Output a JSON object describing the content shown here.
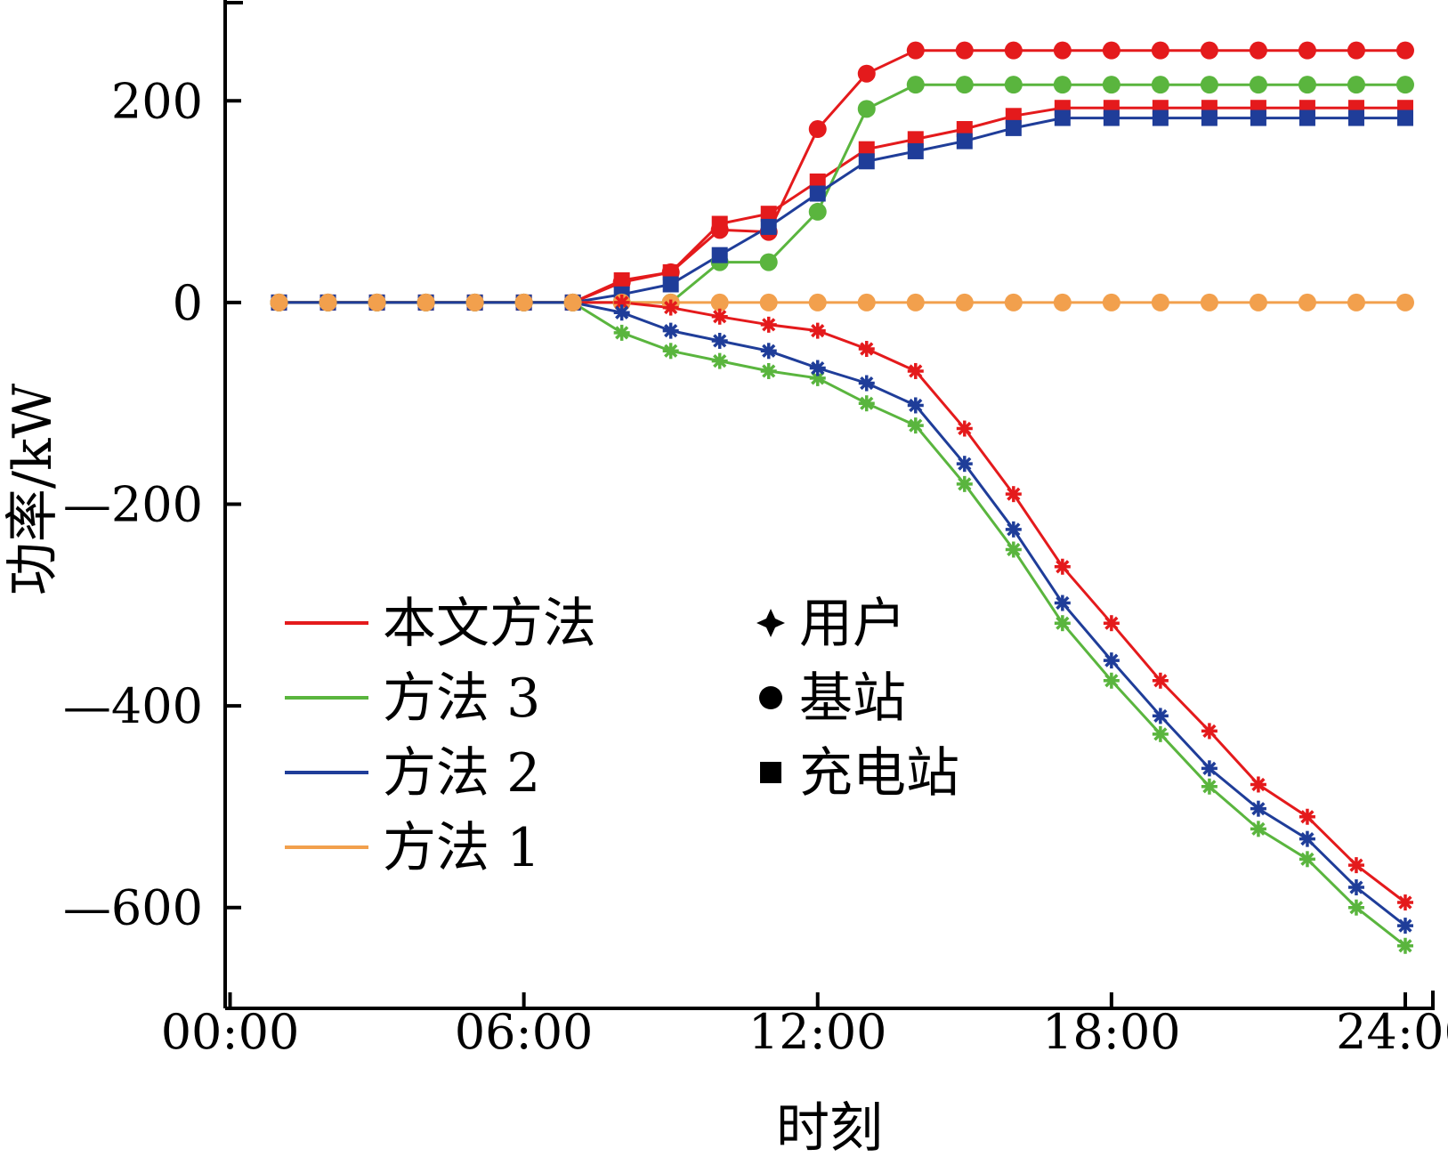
{
  "chart_data": {
    "type": "line",
    "xlabel": "时刻",
    "ylabel": "功率/kW",
    "xlim": [
      -0.1,
      24.6
    ],
    "ylim": [
      -700,
      300
    ],
    "x_ticks": [
      0,
      6,
      12,
      18,
      24
    ],
    "x_tick_labels": [
      "00:00",
      "06:00",
      "12:00",
      "18:00",
      "24:00"
    ],
    "y_ticks": [
      200,
      0,
      -200,
      -400,
      -600
    ],
    "y_tick_labels": [
      "200",
      "0",
      "—200",
      "—400",
      "—600"
    ],
    "x": [
      1,
      2,
      3,
      4,
      5,
      6,
      7,
      8,
      9,
      10,
      11,
      12,
      13,
      14,
      15,
      16,
      17,
      18,
      19,
      20,
      21,
      22,
      23,
      24
    ],
    "legend": {
      "methods": [
        {
          "label": "本文方法",
          "color": "#e41a1c"
        },
        {
          "label": "方法 3",
          "color": "#5ab53e"
        },
        {
          "label": "方法 2",
          "color": "#1f3d99"
        },
        {
          "label": "方法 1",
          "color": "#f2a04d"
        }
      ],
      "markers": [
        {
          "label": "用户",
          "marker": "star"
        },
        {
          "label": "基站",
          "marker": "circle"
        },
        {
          "label": "充电站",
          "marker": "square"
        }
      ]
    },
    "series": [
      {
        "method": "本文方法",
        "entity": "基站",
        "marker": "circle",
        "color": "#e41a1c",
        "values": [
          0,
          0,
          0,
          0,
          0,
          0,
          0,
          20,
          30,
          72,
          70,
          172,
          227,
          250,
          250,
          250,
          250,
          250,
          250,
          250,
          250,
          250,
          250,
          250
        ]
      },
      {
        "method": "本文方法",
        "entity": "充电站",
        "marker": "square",
        "color": "#e41a1c",
        "values": [
          0,
          0,
          0,
          0,
          0,
          0,
          0,
          22,
          30,
          78,
          88,
          120,
          152,
          162,
          172,
          185,
          193,
          193,
          193,
          193,
          193,
          193,
          193,
          193
        ]
      },
      {
        "method": "方法 3",
        "entity": "基站",
        "marker": "circle",
        "color": "#5ab53e",
        "values": [
          0,
          0,
          0,
          0,
          0,
          0,
          0,
          0,
          0,
          40,
          40,
          90,
          192,
          216,
          216,
          216,
          216,
          216,
          216,
          216,
          216,
          216,
          216,
          216
        ]
      },
      {
        "method": "方法 2",
        "entity": "充电站",
        "marker": "square",
        "color": "#1f3d99",
        "values": [
          0,
          0,
          0,
          0,
          0,
          0,
          0,
          8,
          18,
          47,
          75,
          108,
          140,
          150,
          160,
          173,
          183,
          183,
          183,
          183,
          183,
          183,
          183,
          183
        ]
      },
      {
        "method": "方法 1",
        "entity": "基站",
        "marker": "circle",
        "color": "#f2a04d",
        "values": [
          0,
          0,
          0,
          0,
          0,
          0,
          0,
          0,
          0,
          0,
          0,
          0,
          0,
          0,
          0,
          0,
          0,
          0,
          0,
          0,
          0,
          0,
          0,
          0
        ]
      },
      {
        "method": "本文方法",
        "entity": "用户",
        "marker": "star",
        "color": "#e41a1c",
        "values": [
          0,
          0,
          0,
          0,
          0,
          0,
          0,
          0,
          -5,
          -14,
          -22,
          -28,
          -46,
          -68,
          -125,
          -190,
          -262,
          -318,
          -375,
          -425,
          -478,
          -510,
          -558,
          -595
        ]
      },
      {
        "method": "方法 3",
        "entity": "用户",
        "marker": "star",
        "color": "#5ab53e",
        "values": [
          0,
          0,
          0,
          0,
          0,
          0,
          0,
          -30,
          -48,
          -58,
          -68,
          -75,
          -100,
          -122,
          -180,
          -245,
          -318,
          -375,
          -428,
          -480,
          -522,
          -552,
          -600,
          -638
        ]
      },
      {
        "method": "方法 2",
        "entity": "用户",
        "marker": "star",
        "color": "#1f3d99",
        "values": [
          0,
          0,
          0,
          0,
          0,
          0,
          0,
          -10,
          -28,
          -38,
          -48,
          -65,
          -80,
          -102,
          -160,
          -225,
          -298,
          -355,
          -410,
          -462,
          -502,
          -532,
          -580,
          -618
        ]
      }
    ]
  }
}
